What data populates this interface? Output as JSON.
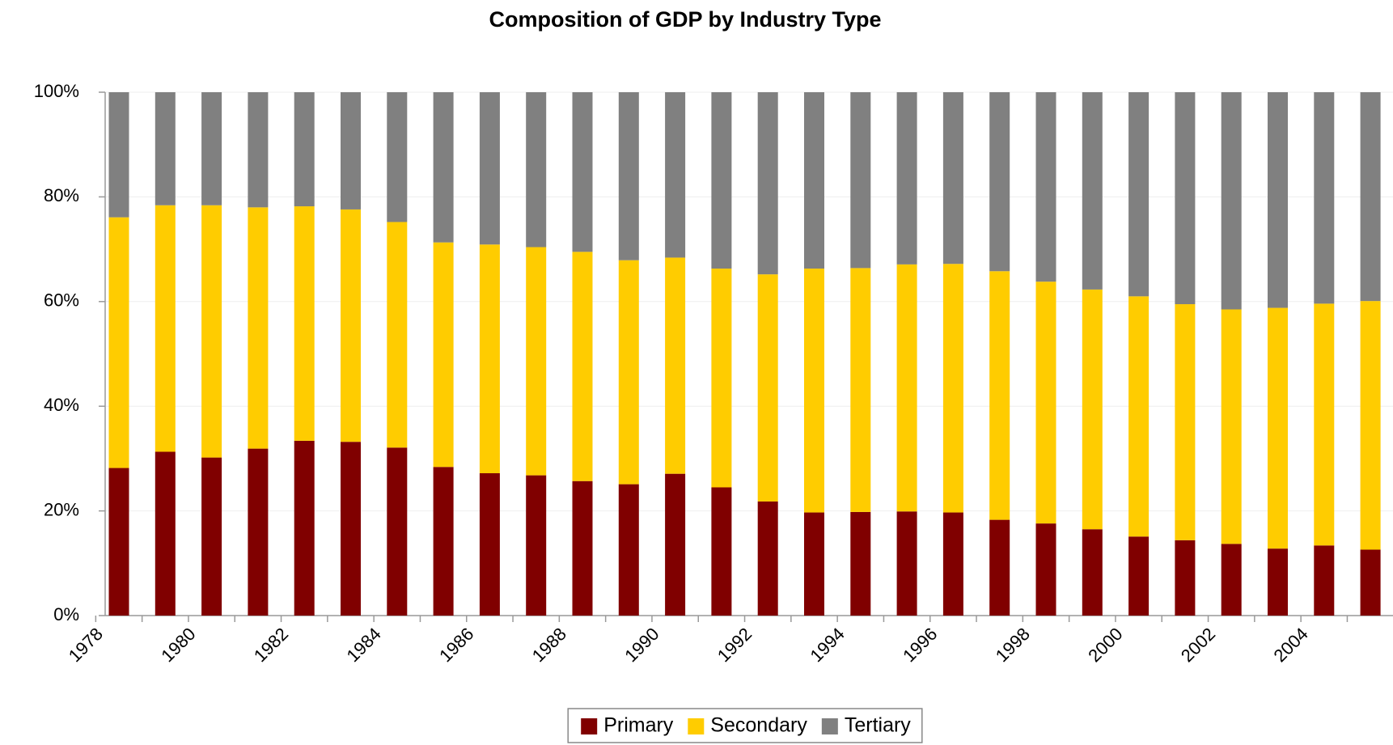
{
  "chart_data": {
    "type": "stacked_bar",
    "title": "Composition of GDP by Industry Type",
    "categories": [
      "1978",
      null,
      "1980",
      null,
      "1982",
      null,
      "1984",
      null,
      "1986",
      null,
      "1988",
      null,
      "1990",
      null,
      "1992",
      null,
      "1994",
      null,
      "1996",
      null,
      "1998",
      null,
      "2000",
      null,
      "2002",
      null,
      "2004",
      null
    ],
    "series": [
      {
        "name": "Primary",
        "color": "#800000",
        "values": [
          28.2,
          31.3,
          30.2,
          31.9,
          33.4,
          33.2,
          32.1,
          28.4,
          27.2,
          26.8,
          25.7,
          25.1,
          27.1,
          24.5,
          21.8,
          19.7,
          19.8,
          19.9,
          19.7,
          18.3,
          17.6,
          16.5,
          15.1,
          14.4,
          13.7,
          12.8,
          13.4,
          12.6
        ]
      },
      {
        "name": "Secondary",
        "color": "#ffcc00",
        "values": [
          47.9,
          47.1,
          48.2,
          46.1,
          44.8,
          44.4,
          43.1,
          42.9,
          43.7,
          43.6,
          43.8,
          42.8,
          41.3,
          41.8,
          43.4,
          46.6,
          46.6,
          47.2,
          47.5,
          47.5,
          46.2,
          45.8,
          45.9,
          45.1,
          44.8,
          46.0,
          46.2,
          47.5
        ]
      },
      {
        "name": "Tertiary",
        "color": "#808080",
        "values": [
          23.9,
          21.6,
          21.6,
          22.0,
          21.8,
          22.4,
          24.8,
          28.7,
          29.1,
          29.6,
          30.5,
          32.1,
          31.6,
          33.7,
          34.8,
          33.7,
          33.6,
          32.9,
          32.8,
          34.2,
          36.2,
          37.7,
          39.0,
          40.5,
          41.5,
          41.2,
          40.4,
          39.9
        ]
      }
    ],
    "ylim": [
      0,
      100
    ],
    "yticks": [
      {
        "value": 0,
        "label": "0%"
      },
      {
        "value": 20,
        "label": "20%"
      },
      {
        "value": 40,
        "label": "40%"
      },
      {
        "value": 60,
        "label": "60%"
      },
      {
        "value": 80,
        "label": "80%"
      },
      {
        "value": 100,
        "label": "100%"
      }
    ],
    "grid": true,
    "legend": "bottom"
  }
}
